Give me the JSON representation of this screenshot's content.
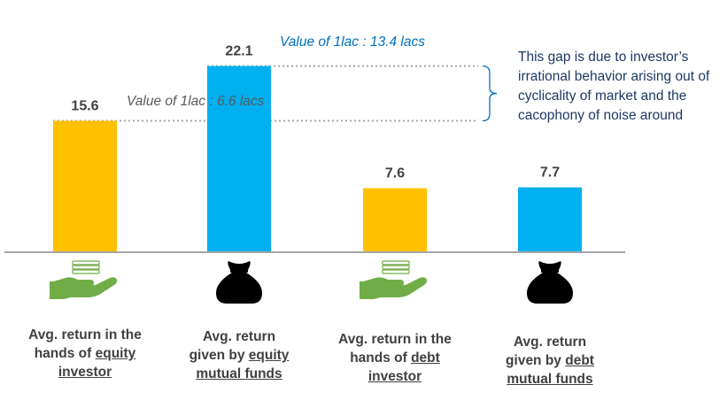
{
  "chart_data": {
    "type": "bar",
    "categories": [
      {
        "pre": "Avg. return in the",
        "mid_pre": "hands of ",
        "u1": "equity",
        "u2": "investor"
      },
      {
        "pre": "Avg. return",
        "mid_pre": "given by ",
        "u1": "equity",
        "u2": "mutual funds"
      },
      {
        "pre": "Avg. return in the",
        "mid_pre": "hands of ",
        "u1": "debt",
        "u2": "investor"
      },
      {
        "pre": "Avg. return",
        "mid_pre": "given by ",
        "u1": "debt",
        "u2": "mutual funds"
      }
    ],
    "values": [
      15.6,
      22.1,
      7.6,
      7.7
    ],
    "bar_colors": [
      "#FFC000",
      "#00B0F0",
      "#FFC000",
      "#00B0F0"
    ],
    "icons": [
      "hand-money-icon",
      "money-bag-icon",
      "hand-money-icon",
      "money-bag-icon"
    ],
    "ylim": [
      0,
      24
    ],
    "grid": false,
    "annotations": {
      "value_low": "Value of 1lac : 6.6 lacs",
      "value_high": "Value of 1lac : 13.4 lacs",
      "note": "This gap is due to investor’s irrational behavior arising out of cyclicality of market and the cacophony of noise around"
    }
  },
  "colors": {
    "investor_bar": "#FFC000",
    "fund_bar": "#00B0F0",
    "annotation_blue": "#0070C0",
    "annotation_gray": "#595959",
    "note_text": "#1F3864",
    "baseline": "#A6A6A6",
    "hand_green": "#70AD47"
  }
}
